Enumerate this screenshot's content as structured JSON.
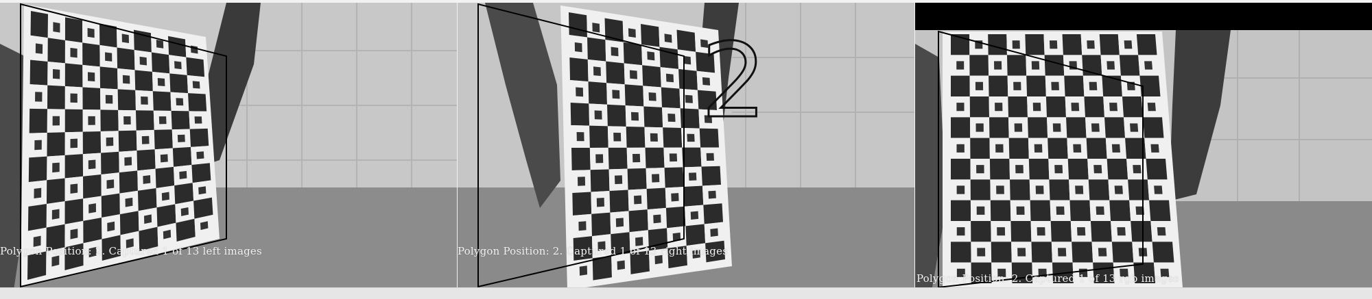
{
  "panels": [
    {
      "id": "left",
      "caption": "Polygon Position: 2. Captured 1 of 13 left images"
    },
    {
      "id": "right",
      "caption": "Polygon Position: 2. Captured 1 of 13 right images",
      "position_number": "2"
    },
    {
      "id": "rgb",
      "caption": "Polygon Position: 2. Captured 1 of 13 rgb images"
    }
  ],
  "colors": {
    "polygon_outline": "#000000",
    "board_light": "#f0f0f0",
    "board_dark": "#2b2b2b",
    "wall": "#c9c9c9",
    "floor": "#8f8f8f"
  },
  "icons": [
    "charuco-calibration-board",
    "hand"
  ]
}
